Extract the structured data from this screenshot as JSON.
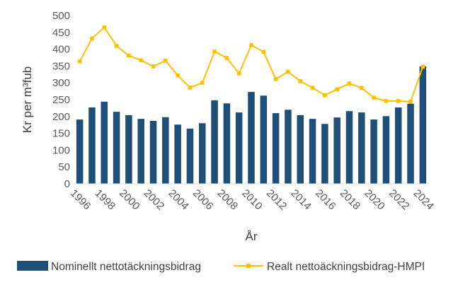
{
  "chart_data": {
    "type": "bar",
    "xlabel": "År",
    "ylabel": "Kr per m³fub",
    "ylim": [
      0,
      500
    ],
    "yticks": [
      0,
      50,
      100,
      150,
      200,
      250,
      300,
      350,
      400,
      450,
      500
    ],
    "categories": [
      "1996",
      "1997",
      "1998",
      "1999",
      "2000",
      "2001",
      "2002",
      "2003",
      "2004",
      "2005",
      "2006",
      "2007",
      "2008",
      "2009",
      "2010",
      "2011",
      "2012",
      "2013",
      "2014",
      "2015",
      "2016",
      "2017",
      "2018",
      "2019",
      "2020",
      "2021",
      "2022",
      "2023",
      "2024"
    ],
    "x_tick_labels": [
      "1996",
      "1998",
      "2000",
      "2002",
      "2004",
      "2006",
      "2008",
      "2010",
      "2012",
      "2014",
      "2016",
      "2018",
      "2020",
      "2022",
      "2024"
    ],
    "grid": false,
    "legend_position": "bottom",
    "series": [
      {
        "name": "Nominellt nettotäckningsbidrag",
        "type": "bar",
        "color": "#1f4e79",
        "values": [
          191,
          227,
          244,
          214,
          204,
          193,
          187,
          198,
          176,
          164,
          180,
          248,
          239,
          212,
          273,
          262,
          210,
          220,
          204,
          193,
          178,
          197,
          216,
          212,
          191,
          201,
          227,
          238,
          349
        ]
      },
      {
        "name": "Realt nettoäckningsbidrag-HMPI",
        "type": "line",
        "color": "#ffc000",
        "values": [
          364,
          432,
          465,
          410,
          381,
          367,
          349,
          366,
          322,
          286,
          300,
          393,
          374,
          328,
          412,
          392,
          311,
          333,
          305,
          285,
          263,
          281,
          298,
          285,
          256,
          246,
          246,
          244,
          348
        ]
      }
    ]
  }
}
